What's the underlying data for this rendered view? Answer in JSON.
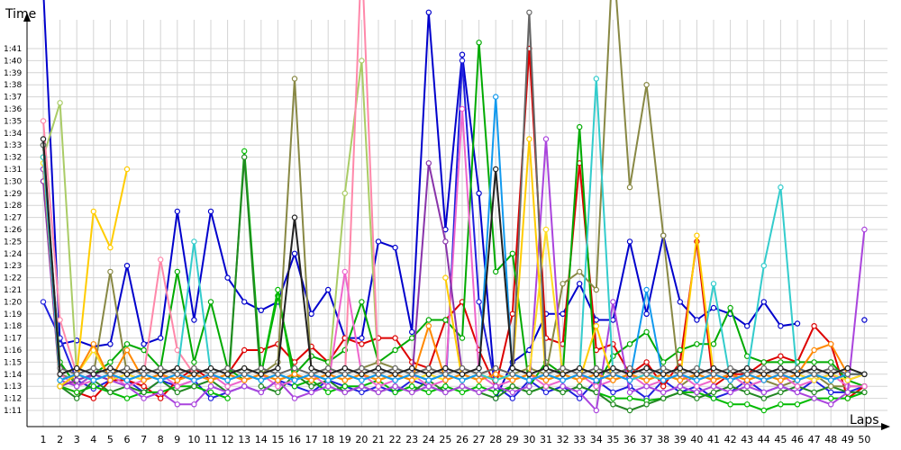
{
  "chart_data": {
    "type": "line",
    "title": "",
    "ylabel": "Time",
    "xlabel": "Laps",
    "x_range": [
      1,
      50
    ],
    "y_range_seconds": [
      70,
      101
    ],
    "y_tick_labels": [
      "1:11",
      "1:12",
      "1:13",
      "1:14",
      "1:15",
      "1:16",
      "1:17",
      "1:18",
      "1:19",
      "1:20",
      "1:21",
      "1:22",
      "1:23",
      "1:24",
      "1:25",
      "1:26",
      "1:27",
      "1:28",
      "1:29",
      "1:30",
      "1:31",
      "1:32",
      "1:33",
      "1:34",
      "1:35",
      "1:36",
      "1:37",
      "1:38",
      "1:39",
      "1:40",
      "1:41"
    ],
    "x_tick_labels": [
      "1",
      "2",
      "3",
      "4",
      "5",
      "6",
      "7",
      "8",
      "9",
      "10",
      "11",
      "12",
      "13",
      "14",
      "15",
      "16",
      "17",
      "18",
      "19",
      "20",
      "21",
      "22",
      "23",
      "24",
      "25",
      "26",
      "27",
      "28",
      "29",
      "30",
      "31",
      "32",
      "33",
      "34",
      "35",
      "36",
      "37",
      "38",
      "39",
      "40",
      "41",
      "42",
      "43",
      "44",
      "45",
      "46",
      "47",
      "48",
      "49",
      "50"
    ],
    "grid": true,
    "legend": "none",
    "note": "Series values are lap times in seconds; tick labels print them as m:ss.",
    "series": [
      {
        "color": "#0000cc",
        "values": [
          106,
          76.5,
          76.8,
          76.3,
          76.5,
          83,
          76.5,
          77,
          87.5,
          78.5,
          87.5,
          82,
          80,
          79.3,
          80,
          84,
          79,
          81,
          77,
          77,
          85,
          84.5,
          77.5,
          104,
          86,
          100.5,
          89,
          72,
          75,
          76,
          79,
          79,
          81.5,
          78.5,
          78.5,
          85,
          79,
          85.5,
          80,
          78.5,
          79.5,
          79,
          78,
          80,
          78,
          78.2,
          null,
          null,
          null,
          78.5
        ]
      },
      {
        "color": "#2020dd",
        "values": [
          80,
          77,
          73.5,
          72.8,
          73.5,
          73.5,
          72.5,
          73.5,
          73,
          73.5,
          72,
          72.5,
          73,
          72.5,
          73.5,
          73,
          72.5,
          73.5,
          73,
          72.5,
          73,
          72.5,
          73.5,
          73,
          72.5,
          100,
          80,
          73,
          72,
          73.5,
          72.5,
          73,
          72,
          73.5,
          72.5,
          73,
          72,
          73.5,
          72.5,
          73,
          72,
          72.5,
          73.5,
          72.5,
          73,
          72.5,
          73.5,
          72.5,
          72.5,
          73
        ]
      },
      {
        "color": "#dd0000",
        "values": [
          93,
          73,
          72.5,
          72,
          73.5,
          73.5,
          73,
          72,
          73.5,
          74.5,
          73.5,
          74,
          76,
          76,
          76.5,
          75,
          76.3,
          75,
          77,
          76.5,
          77,
          77,
          75,
          74.5,
          78.5,
          80,
          76,
          73,
          79,
          101,
          77,
          76.5,
          91.5,
          76,
          76.5,
          74,
          75,
          73,
          75,
          85,
          73,
          74,
          74,
          75,
          75.5,
          75,
          78,
          76.5,
          72,
          73
        ]
      },
      {
        "color": "#00aa00",
        "values": [
          92,
          75,
          73,
          74,
          75,
          76.5,
          76,
          74.5,
          82.5,
          75,
          80,
          74.5,
          73.5,
          74,
          80.5,
          74,
          75.5,
          75,
          76,
          80,
          75,
          76,
          77,
          78.5,
          78.5,
          77,
          101.5,
          82.5,
          84,
          73,
          75,
          74,
          94.5,
          73,
          75.5,
          76.5,
          77.5,
          75,
          76,
          76.5,
          76.5,
          79.5,
          75.5,
          75,
          75,
          75,
          75,
          75,
          73.5,
          73
        ]
      },
      {
        "color": "#00bb00",
        "values": [
          93,
          73,
          72.5,
          73,
          72.5,
          72,
          72.5,
          72.5,
          73,
          73,
          72.5,
          72,
          92.5,
          74,
          81,
          73,
          73.5,
          72.5,
          73,
          73,
          73.5,
          72.5,
          73,
          72.5,
          73,
          72.5,
          73,
          72.5,
          73,
          72.5,
          73,
          72.5,
          73,
          72.5,
          72,
          72,
          71.8,
          72,
          72.5,
          72.5,
          72,
          71.5,
          71.5,
          71,
          71.5,
          71.5,
          72,
          72,
          72,
          72.5
        ]
      },
      {
        "color": "#228822",
        "values": [
          91,
          73,
          72,
          73.5,
          72.5,
          73,
          72.5,
          73.5,
          72.5,
          73,
          73.5,
          72.5,
          92,
          73,
          72.5,
          74,
          73,
          73.5,
          72.5,
          73,
          72.5,
          73,
          72.5,
          73.5,
          72.5,
          73,
          72.5,
          72,
          73,
          72.5,
          73,
          72.5,
          73,
          72.5,
          71.5,
          71,
          71.5,
          72,
          72.5,
          72,
          72.5,
          73,
          72.5,
          72,
          72.5,
          73,
          72.5,
          73,
          72.5,
          72.5
        ]
      },
      {
        "color": "#888844",
        "values": [
          91,
          74,
          73.5,
          74,
          82.5,
          74,
          73.5,
          74,
          74.5,
          74,
          73.5,
          74,
          74.5,
          74,
          75,
          98.5,
          74,
          74.5,
          74,
          74.5,
          75,
          74.5,
          74,
          74.5,
          74,
          74.5,
          74,
          74.5,
          74,
          74.5,
          74,
          81.5,
          82.5,
          81,
          109,
          89.5,
          98,
          85.5,
          73,
          74,
          73.5,
          74,
          73,
          73.5,
          73,
          73.5,
          74,
          73,
          73,
          73
        ]
      },
      {
        "color": "#aacc66",
        "values": [
          92,
          96.5,
          74,
          73.5,
          74,
          73.5,
          74,
          73.5,
          74,
          73.5,
          74,
          73.5,
          74,
          73.5,
          74,
          73.5,
          74,
          73.5,
          89,
          100,
          74,
          73.5,
          74,
          73.5,
          74,
          73.5,
          74,
          73.5,
          74,
          73.5,
          74,
          73.5,
          74,
          73.5,
          74,
          73.5,
          74,
          73.5,
          74,
          73.5,
          74,
          73.5,
          74,
          73.5,
          74,
          73.5,
          74,
          73.5,
          74,
          74
        ]
      },
      {
        "color": "#ff88aa",
        "values": [
          95,
          78.5,
          74,
          73.5,
          74,
          73.5,
          74,
          83.5,
          76,
          74,
          73.5,
          74,
          73.5,
          74,
          73.5,
          74,
          73.5,
          74,
          73.5,
          109,
          74,
          73.5,
          74,
          73.5,
          74,
          73.5,
          74,
          73.5,
          74,
          73.5,
          74,
          73.5,
          74,
          73.5,
          74,
          73.5,
          74,
          73.5,
          74,
          73.5,
          74,
          73.5,
          74,
          73.5,
          74,
          73.5,
          74,
          73.5,
          74,
          74
        ]
      },
      {
        "color": "#ee66cc",
        "values": [
          90,
          74,
          73,
          73.5,
          74,
          73,
          73.5,
          74,
          73,
          73.5,
          74,
          73,
          73.5,
          74,
          73,
          73.5,
          74,
          73,
          82.5,
          74,
          73,
          73.5,
          74,
          73,
          73.5,
          96,
          74,
          73,
          73.5,
          74,
          73,
          73.5,
          74,
          73,
          73.5,
          74,
          73,
          73.5,
          74,
          73,
          73.5,
          74,
          73,
          73.5,
          74,
          73,
          73.5,
          74,
          73,
          73
        ]
      },
      {
        "color": "#aa44dd",
        "values": [
          91,
          73.5,
          73,
          74,
          73.5,
          73,
          72,
          72.5,
          71.5,
          71.5,
          73,
          72.5,
          73,
          72.5,
          73.5,
          72,
          72.5,
          73,
          72.5,
          73,
          72.5,
          73,
          72.5,
          73,
          72.5,
          73,
          72.5,
          73,
          72.5,
          73,
          93.5,
          73,
          72.5,
          71,
          80,
          72.5,
          73,
          72.5,
          73,
          72.5,
          73,
          72.5,
          73,
          72.5,
          73,
          72.5,
          72,
          71.5,
          72.5,
          86
        ]
      },
      {
        "color": "#8833aa",
        "values": [
          90,
          73,
          73.5,
          74,
          73.5,
          74,
          73.5,
          74,
          73.5,
          74,
          73.5,
          74,
          73.5,
          74,
          73.5,
          74,
          73.5,
          74,
          73.5,
          74,
          73.5,
          74,
          73.5,
          91.5,
          85,
          74,
          73.5,
          74,
          73.5,
          74,
          73.5,
          74,
          73.5,
          74,
          73.5,
          74,
          73.5,
          74,
          73.5,
          74,
          73.5,
          74,
          73.5,
          74,
          73.5,
          74,
          73.5,
          74,
          73.5,
          74
        ]
      },
      {
        "color": "#ffcc00",
        "values": [
          93,
          73,
          74,
          87.5,
          84.5,
          91,
          null,
          null,
          null,
          null,
          null,
          null,
          null,
          null,
          null,
          null,
          null,
          null,
          null,
          null,
          null,
          null,
          null,
          null,
          82,
          73.5,
          74,
          73.5,
          74,
          93.5,
          73.5,
          74,
          73.5,
          78,
          73.5,
          74,
          73.5,
          74,
          73.5,
          85.5,
          74,
          73.5,
          74,
          73.5,
          74,
          73.5,
          74,
          73.5,
          74,
          74
        ]
      },
      {
        "color": "#ffdd22",
        "values": [
          91.5,
          73.5,
          74,
          76,
          73.5,
          74,
          73.5,
          74,
          73.5,
          74,
          73.5,
          74,
          73.5,
          74,
          73.5,
          74,
          73.5,
          74,
          73.5,
          74,
          73.5,
          74,
          73.5,
          74,
          73.5,
          74,
          73.5,
          74,
          73.5,
          74,
          86,
          74,
          73.5,
          74,
          73.5,
          74,
          73.5,
          74,
          73.5,
          74,
          73.5,
          74,
          73.5,
          74,
          73.5,
          74,
          73.5,
          74,
          73.5,
          74
        ]
      },
      {
        "color": "#ff8800",
        "values": [
          92,
          73.5,
          74,
          76.5,
          73.5,
          76,
          73.5,
          74,
          73.5,
          74,
          73.5,
          74,
          73.5,
          74,
          73.5,
          74,
          73.5,
          74,
          73.5,
          74,
          73.5,
          74,
          73.5,
          78,
          73.5,
          74,
          73.5,
          74,
          73.5,
          74,
          73.5,
          74,
          73.5,
          74,
          73.5,
          74,
          73.5,
          74,
          73.5,
          74,
          73.5,
          74,
          73.5,
          74,
          73.5,
          74,
          76,
          76.5,
          74,
          74
        ]
      },
      {
        "color": "#33cccc",
        "values": [
          92,
          73.5,
          74,
          73.5,
          74,
          73.5,
          74,
          73.5,
          74,
          85,
          74,
          73.5,
          74,
          73.5,
          74,
          73.5,
          74,
          73.5,
          74,
          73.5,
          74,
          73.5,
          74,
          73.5,
          74,
          73.5,
          74,
          73.5,
          74,
          73.5,
          74,
          73.5,
          74,
          98.5,
          74,
          73.5,
          74,
          73.5,
          74,
          73.5,
          81.5,
          73.5,
          74,
          83,
          89.5,
          73.5,
          74,
          73.5,
          74,
          74
        ]
      },
      {
        "color": "#1199ee",
        "values": [
          93,
          73.5,
          74,
          73.5,
          74,
          73.5,
          74,
          73.5,
          74,
          73.5,
          74,
          73.5,
          74,
          73.5,
          74,
          73.5,
          74,
          73.5,
          74,
          73.5,
          74,
          73.5,
          74,
          73.5,
          74,
          73.5,
          74,
          97,
          74,
          73.5,
          74,
          73.5,
          74,
          73.5,
          74,
          73.5,
          81,
          73.5,
          74,
          73.5,
          74,
          73.5,
          74,
          73.5,
          74,
          73.5,
          74,
          73.5,
          74,
          74
        ]
      },
      {
        "color": "#666666",
        "values": [
          93,
          74.5,
          74,
          74.5,
          74,
          74.5,
          74,
          74.5,
          74,
          74.5,
          74,
          74.5,
          74,
          74.5,
          74,
          74.5,
          74,
          74.5,
          74,
          74.5,
          74,
          74.5,
          74,
          74.5,
          74,
          74.5,
          74,
          74.5,
          74,
          104,
          74,
          74.5,
          74,
          74.5,
          74,
          74.5,
          74,
          74.5,
          74,
          74.5,
          74,
          74.5,
          74,
          74.5,
          74,
          74.5,
          74,
          74.5,
          74,
          74
        ]
      },
      {
        "color": "#222222",
        "values": [
          93.5,
          74,
          74.5,
          74,
          74.5,
          74,
          74.5,
          74,
          74.5,
          74,
          74.5,
          74,
          74.5,
          74,
          74.5,
          87,
          74.5,
          74,
          74.5,
          74,
          74.5,
          74,
          74.5,
          74,
          74.5,
          74,
          74.5,
          91,
          74.5,
          74,
          74.5,
          74,
          74.5,
          74,
          74.5,
          74,
          74.5,
          74,
          74.5,
          74,
          74.5,
          74,
          74.5,
          74,
          74.5,
          74,
          74.5,
          74,
          74.5,
          74
        ]
      }
    ]
  }
}
